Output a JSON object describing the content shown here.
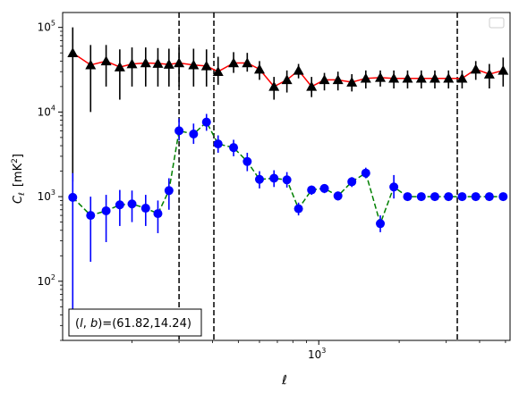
{
  "chart_data": {
    "type": "scatter",
    "xscale": "log",
    "yscale": "log",
    "xlim": [
      110,
      5200
    ],
    "ylim": [
      20,
      150000
    ],
    "xlabel": "ℓ",
    "ylabel_main": "C",
    "ylabel_sub": "ℓ",
    "ylabel_unit_prefix": "[mK",
    "ylabel_unit_exp": "2",
    "ylabel_unit_suffix": "]",
    "x_ticks": [
      {
        "value": 1000,
        "base": "10",
        "exp": "3"
      }
    ],
    "y_ticks": [
      {
        "value": 100,
        "base": "10",
        "exp": "2"
      },
      {
        "value": 1000,
        "base": "10",
        "exp": "3"
      },
      {
        "value": 10000,
        "base": "10",
        "exp": "4"
      },
      {
        "value": 100000,
        "base": "10",
        "exp": "5"
      }
    ],
    "vlines": [
      300,
      405,
      3300
    ],
    "annotation": "(l, b)=(61.82,14.24)",
    "annotation_parts": {
      "left": "(",
      "l": "l",
      "sep": ", ",
      "b": "b",
      "right": ")=(61.82,14.24)"
    },
    "legend": "top-right",
    "grid": false,
    "series": [
      {
        "marker": "triangle",
        "marker_color": "#000000",
        "line_color": "#ff0000",
        "line_style": "solid",
        "error_color": "#000000",
        "x": [
          120,
          140,
          160,
          180,
          200,
          225,
          250,
          275,
          300,
          340,
          380,
          420,
          480,
          540,
          600,
          680,
          760,
          840,
          940,
          1050,
          1180,
          1330,
          1500,
          1700,
          1910,
          2150,
          2420,
          2720,
          3060,
          3440,
          3870,
          4350,
          4900
        ],
        "y": [
          50000,
          36000,
          40000,
          34000,
          37000,
          38000,
          37500,
          36500,
          38000,
          36000,
          35000,
          30000,
          38000,
          38000,
          32000,
          20000,
          24000,
          31000,
          20000,
          24000,
          24000,
          22500,
          25000,
          25500,
          25000,
          25000,
          25000,
          25000,
          25000,
          25000,
          32000,
          28000,
          31000
        ],
        "err_low": [
          1500,
          10000,
          20000,
          14000,
          20000,
          20000,
          20000,
          20000,
          20000,
          20000,
          20000,
          21000,
          29000,
          30000,
          24000,
          14000,
          17000,
          25000,
          15000,
          18000,
          18000,
          17500,
          19000,
          20000,
          19000,
          19000,
          19000,
          19000,
          19000,
          19000,
          24000,
          19000,
          20000
        ],
        "err_high": [
          100000,
          62000,
          62000,
          55000,
          58000,
          58000,
          57000,
          56000,
          58000,
          56000,
          55000,
          45000,
          51000,
          50000,
          40000,
          26000,
          31000,
          37000,
          26000,
          29000,
          30000,
          28000,
          31000,
          31000,
          31000,
          31000,
          31000,
          31000,
          31000,
          31000,
          40000,
          37000,
          44000
        ]
      },
      {
        "marker": "circle",
        "marker_color": "#0000ff",
        "line_color": "#008000",
        "line_style": "dashed",
        "error_color": "#0000ff",
        "x": [
          120,
          140,
          160,
          180,
          200,
          225,
          250,
          275,
          300,
          340,
          380,
          420,
          480,
          540,
          600,
          680,
          760,
          840,
          940,
          1050,
          1180,
          1330,
          1500,
          1700,
          1910,
          2150,
          2420,
          2720,
          3060,
          3440,
          3870,
          4350,
          4900
        ],
        "y": [
          980,
          600,
          680,
          800,
          820,
          730,
          630,
          1180,
          6000,
          5500,
          7600,
          4200,
          3800,
          2600,
          1600,
          1650,
          1580,
          720,
          1200,
          1250,
          1020,
          1500,
          1900,
          480,
          1300,
          1000,
          1000,
          1000,
          1000,
          1000,
          1000,
          1000,
          1000
        ],
        "err_low": [
          30,
          170,
          290,
          450,
          500,
          450,
          370,
          700,
          4600,
          4200,
          6000,
          3300,
          3000,
          2000,
          1250,
          1300,
          1280,
          600,
          1050,
          1100,
          900,
          1300,
          1650,
          380,
          950,
          900,
          900,
          900,
          900,
          900,
          900,
          900,
          900
        ],
        "err_high": [
          1900,
          1000,
          1050,
          1200,
          1180,
          1050,
          900,
          1650,
          8400,
          7300,
          9500,
          5300,
          4700,
          3300,
          2000,
          2050,
          1950,
          850,
          1350,
          1400,
          1150,
          1700,
          2200,
          600,
          1800,
          1100,
          1100,
          1100,
          1100,
          1100,
          1100,
          1100,
          1100
        ]
      }
    ]
  }
}
